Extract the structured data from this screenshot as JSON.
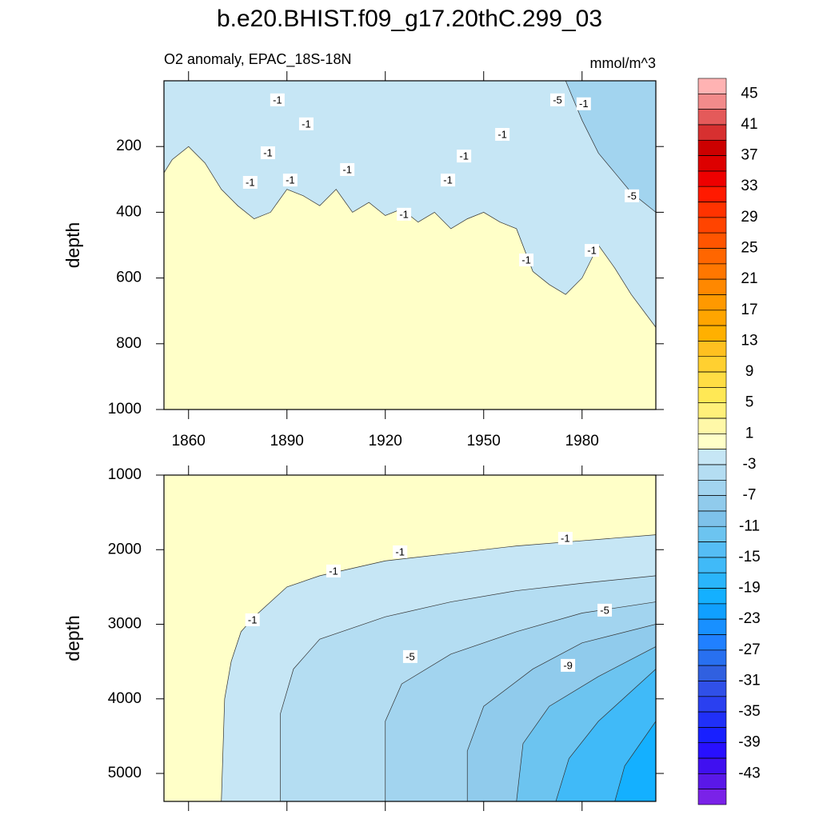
{
  "chart_data": {
    "type": "contour",
    "title": "b.e20.BHIST.f09_g17.20thC.299_03",
    "subtitle": "O2 anomaly, EPAC_18S-18N",
    "units": "mmol/m^3",
    "xlim": [
      1852.5,
      2002.5
    ],
    "xticks": [
      1860,
      1890,
      1920,
      1950,
      1980
    ],
    "panels": [
      {
        "ylabel": "depth",
        "ylim": [
          0,
          1000
        ],
        "yticks": [
          200,
          400,
          600,
          800,
          1000
        ],
        "xtick_labels": true,
        "background": "#ffffc8",
        "contours": [
          {
            "side": "above",
            "fill": "#c6e6f5",
            "x": [
              1852.5,
              1855,
              1860,
              1865,
              1870,
              1875,
              1880,
              1885,
              1890,
              1895,
              1900,
              1905,
              1910,
              1915,
              1920,
              1925,
              1930,
              1935,
              1940,
              1945,
              1950,
              1955,
              1960,
              1965,
              1970,
              1975,
              1980,
              1985,
              1990,
              1995,
              2002.5
            ],
            "y": [
              280,
              240,
              200,
              250,
              330,
              380,
              420,
              400,
              330,
              350,
              380,
              330,
              400,
              370,
              410,
              390,
              430,
              400,
              450,
              420,
              400,
              430,
              450,
              580,
              620,
              650,
              600,
              500,
              570,
              650,
              750
            ]
          },
          {
            "side": "above",
            "fill": "#a2d4ef",
            "x": [
              1975,
              1980,
              1985,
              1990,
              1995,
              2002.5
            ],
            "y": [
              0,
              120,
              220,
              280,
              340,
              400
            ]
          }
        ],
        "labels": [
          {
            "text": "-1",
            "x": 1887.1,
            "y": 58
          },
          {
            "text": "-1",
            "x": 1895.9,
            "y": 131
          },
          {
            "text": "-1",
            "x": 1884.2,
            "y": 219
          },
          {
            "text": "-1",
            "x": 1878.8,
            "y": 309
          },
          {
            "text": "-1",
            "x": 1891.0,
            "y": 302
          },
          {
            "text": "-1",
            "x": 1908.4,
            "y": 270
          },
          {
            "text": "-1",
            "x": 1925.7,
            "y": 406
          },
          {
            "text": "-1",
            "x": 1939.1,
            "y": 302
          },
          {
            "text": "-1",
            "x": 1944.0,
            "y": 229
          },
          {
            "text": "-1",
            "x": 1955.7,
            "y": 163
          },
          {
            "text": "-1",
            "x": 1963.0,
            "y": 545
          },
          {
            "text": "-1",
            "x": 1983.0,
            "y": 516
          },
          {
            "text": "-5",
            "x": 1972.5,
            "y": 58
          },
          {
            "text": "-1",
            "x": 1980.5,
            "y": 70
          },
          {
            "text": "-5",
            "x": 1995.2,
            "y": 350
          }
        ]
      },
      {
        "ylabel": "depth",
        "ylim": [
          1000,
          5375
        ],
        "yticks": [
          1000,
          2000,
          3000,
          4000,
          5000
        ],
        "xtick_labels": false,
        "background": "#ffffc8",
        "contours": [
          {
            "side": "below",
            "fill": "#c6e6f5",
            "x": [
              1870,
              1871,
              1873,
              1876,
              1880,
              1890,
              1900,
              1920,
              1940,
              1960,
              1980,
              2002.5
            ],
            "y": [
              5375,
              4000,
              3500,
              3100,
              2900,
              2500,
              2350,
              2150,
              2050,
              1950,
              1880,
              1800
            ]
          },
          {
            "side": "below",
            "fill": "#b4ddf2",
            "x": [
              1888,
              1888,
              1892,
              1900,
              1920,
              1940,
              1960,
              1980,
              2002.5
            ],
            "y": [
              5375,
              4200,
              3600,
              3200,
              2900,
              2700,
              2550,
              2450,
              2350
            ]
          },
          {
            "side": "below",
            "fill": "#a2d4ef",
            "x": [
              1920,
              1920,
              1925,
              1940,
              1960,
              1980,
              2002.5
            ],
            "y": [
              5375,
              4300,
              3800,
              3400,
              3100,
              2850,
              2700
            ]
          },
          {
            "side": "below",
            "fill": "#90cbec",
            "x": [
              1945,
              1945,
              1950,
              1965,
              1980,
              2002.5
            ],
            "y": [
              5375,
              4700,
              4100,
              3600,
              3250,
              3000
            ]
          },
          {
            "side": "below",
            "fill": "#6cc4f0",
            "x": [
              1960,
              1962,
              1970,
              1985,
              2002.5
            ],
            "y": [
              5375,
              4600,
              4100,
              3700,
              3300
            ]
          },
          {
            "side": "below",
            "fill": "#40baf8",
            "x": [
              1972,
              1976,
              1985,
              2002.5
            ],
            "y": [
              5375,
              4800,
              4300,
              3600
            ]
          },
          {
            "side": "below",
            "fill": "#14b0ff",
            "x": [
              1990,
              1993,
              2002.5
            ],
            "y": [
              5375,
              4900,
              4300
            ]
          }
        ],
        "labels": [
          {
            "text": "-1",
            "x": 1879.5,
            "y": 2940
          },
          {
            "text": "-1",
            "x": 1904.2,
            "y": 2286
          },
          {
            "text": "-1",
            "x": 1924.5,
            "y": 2029
          },
          {
            "text": "-1",
            "x": 1974.9,
            "y": 1847
          },
          {
            "text": "-5",
            "x": 1986.9,
            "y": 2811
          },
          {
            "text": "-5",
            "x": 1927.6,
            "y": 3433
          },
          {
            "text": "-9",
            "x": 1975.7,
            "y": 3551
          }
        ]
      }
    ],
    "colorbar": {
      "levels": [
        45,
        43,
        41,
        39,
        37,
        35,
        33,
        31,
        29,
        27,
        25,
        23,
        21,
        19,
        17,
        15,
        13,
        11,
        9,
        7,
        5,
        3,
        1,
        -1,
        -3,
        -5,
        -7,
        -9,
        -11,
        -13,
        -15,
        -17,
        -19,
        -21,
        -23,
        -25,
        -27,
        -29,
        -31,
        -33,
        -35,
        -37,
        -39,
        -41,
        -43,
        -45
      ],
      "ticks": [
        45,
        41,
        37,
        33,
        29,
        25,
        21,
        17,
        13,
        9,
        5,
        1,
        -3,
        -7,
        -11,
        -15,
        -19,
        -23,
        -27,
        -31,
        -35,
        -39,
        -43
      ],
      "colors": [
        "#ffb3b3",
        "#f28b8b",
        "#e45a5a",
        "#d73030",
        "#cc0000",
        "#dd0000",
        "#ee0000",
        "#ff1a00",
        "#ff3300",
        "#ff4400",
        "#ff5500",
        "#ff6600",
        "#ff7700",
        "#ff8800",
        "#ff9900",
        "#ffa500",
        "#ffb000",
        "#ffc020",
        "#ffd030",
        "#ffdd44",
        "#ffe855",
        "#fff07a",
        "#fff8a8",
        "#ffffc8",
        "#c6e6f5",
        "#b4ddf2",
        "#a2d4ef",
        "#90cbec",
        "#7ec2ea",
        "#6cc4f0",
        "#55bdf5",
        "#40baf8",
        "#2ab5fb",
        "#14b0ff",
        "#10a0ff",
        "#1890ff",
        "#2080ff",
        "#2870f0",
        "#3060e0",
        "#3050e8",
        "#2a40f0",
        "#2030f8",
        "#1820ff",
        "#2810ff",
        "#4010f0",
        "#5a18e8",
        "#7a22e8"
      ]
    }
  }
}
